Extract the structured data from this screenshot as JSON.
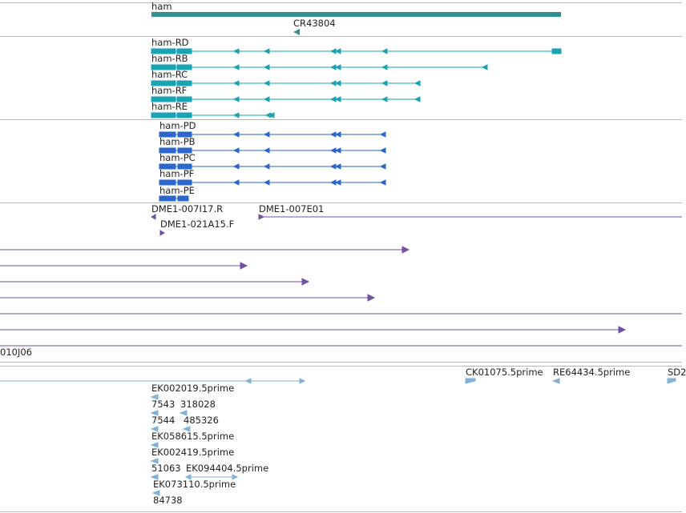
{
  "colors": {
    "gene": "#2f8f8f",
    "transcript": "#1aa3b3",
    "protein": "#2a66cc",
    "clone": "#7050a8",
    "est": "#7fb2d6"
  },
  "gene_track": {
    "gene_label": "ham",
    "ncrna_label": "CR43804"
  },
  "transcript_track": {
    "labels": [
      "ham-RD",
      "ham-RB",
      "ham-RC",
      "ham-RF",
      "ham-RE"
    ]
  },
  "protein_track": {
    "labels": [
      "ham-PD",
      "ham-PB",
      "ham-PC",
      "ham-PF",
      "ham-PE"
    ]
  },
  "clone_track": {
    "labels": [
      "DME1-007I17.R",
      "DME1-007E01",
      "DME1-021A15.F",
      "010J06"
    ]
  },
  "est_track": {
    "labels": [
      "CK01075.5prime",
      "RE64434.5prime",
      "SD2",
      "EK002019.5prime",
      "7543",
      "318028",
      "7544",
      "485326",
      "EK058615.5prime",
      "EK002419.5prime",
      "51063",
      "EK094404.5prime",
      "EK073110.5prime",
      "84738"
    ]
  }
}
